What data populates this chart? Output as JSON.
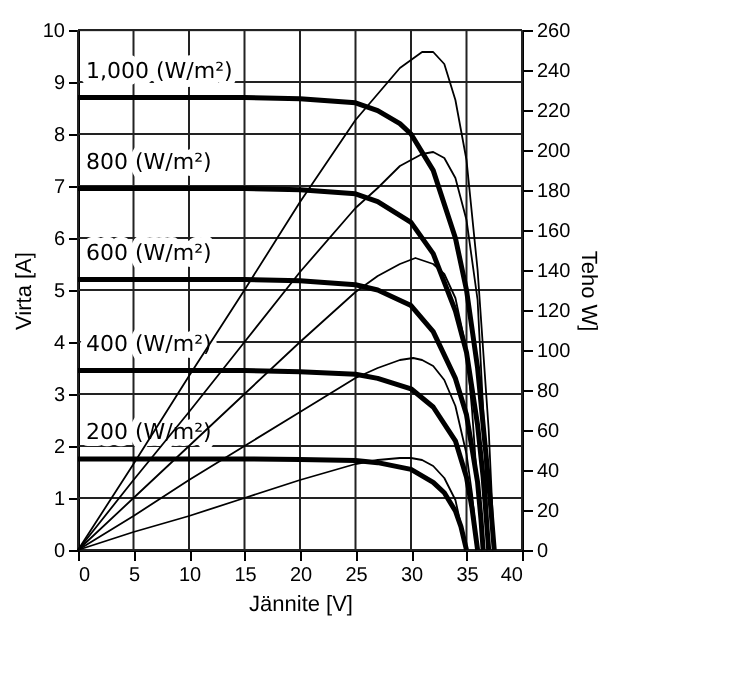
{
  "chart_data": {
    "type": "line",
    "xlabel": "Jännite [V]",
    "ylabel": "Virta [A]",
    "y2label": "Teho W]",
    "xlim": [
      0,
      40
    ],
    "xticks": [
      0,
      5,
      10,
      15,
      20,
      25,
      30,
      35,
      40
    ],
    "ylim": [
      0,
      10
    ],
    "yticks": [
      0,
      1,
      2,
      3,
      4,
      5,
      6,
      7,
      8,
      9,
      10
    ],
    "y2lim": [
      0,
      260
    ],
    "y2ticks": [
      0,
      20,
      40,
      60,
      80,
      100,
      120,
      140,
      160,
      180,
      200,
      220,
      240,
      260
    ],
    "grid": true,
    "line_style": "solid",
    "marker": "none",
    "series": [
      {
        "name": "1,000 (W/m²)",
        "color": "#000000",
        "x": [
          0,
          5,
          10,
          15,
          20,
          25,
          27,
          29,
          30,
          32,
          34,
          35,
          36,
          37,
          37.5
        ],
        "values": [
          8.7,
          8.7,
          8.7,
          8.7,
          8.68,
          8.6,
          8.45,
          8.2,
          8.0,
          7.3,
          6.0,
          5.0,
          3.5,
          1.3,
          0
        ]
      },
      {
        "name": "800 (W/m²)",
        "color": "#000000",
        "x": [
          0,
          5,
          10,
          15,
          20,
          25,
          27,
          30,
          32,
          34,
          35,
          36,
          36.5,
          37
        ],
        "values": [
          6.95,
          6.95,
          6.95,
          6.95,
          6.93,
          6.85,
          6.7,
          6.3,
          5.7,
          4.6,
          3.8,
          2.4,
          1.4,
          0
        ]
      },
      {
        "name": "600 (W/m²)",
        "color": "#000000",
        "x": [
          0,
          5,
          10,
          15,
          20,
          25,
          27,
          30,
          32,
          34,
          35,
          36,
          36.3,
          36.5
        ],
        "values": [
          5.2,
          5.2,
          5.2,
          5.2,
          5.18,
          5.1,
          5.0,
          4.7,
          4.2,
          3.3,
          2.6,
          1.3,
          0.6,
          0
        ]
      },
      {
        "name": "400 (W/m²)",
        "color": "#000000",
        "x": [
          0,
          5,
          10,
          15,
          20,
          25,
          27,
          30,
          32,
          34,
          35,
          35.5,
          36
        ],
        "values": [
          3.45,
          3.45,
          3.45,
          3.45,
          3.43,
          3.38,
          3.3,
          3.1,
          2.75,
          2.1,
          1.4,
          0.8,
          0
        ]
      },
      {
        "name": "200 (W/m²)",
        "color": "#000000",
        "x": [
          0,
          5,
          10,
          15,
          20,
          25,
          27,
          30,
          32,
          33,
          34,
          34.5,
          35
        ],
        "values": [
          1.75,
          1.75,
          1.75,
          1.75,
          1.74,
          1.72,
          1.68,
          1.55,
          1.3,
          1.1,
          0.75,
          0.45,
          0
        ]
      },
      {
        "axis": "y2",
        "color": "#000000",
        "x": [
          0,
          5,
          10,
          15,
          20,
          25,
          27,
          29,
          31,
          32,
          33,
          34,
          35,
          36,
          37,
          37.5
        ],
        "values": [
          0,
          43,
          87,
          130,
          174,
          215,
          228,
          241,
          249,
          249,
          243,
          225,
          195,
          140,
          60,
          0
        ]
      },
      {
        "axis": "y2",
        "color": "#000000",
        "x": [
          0,
          5,
          10,
          15,
          20,
          25,
          27,
          29,
          31,
          32,
          33,
          34,
          35,
          36,
          36.5,
          37
        ],
        "values": [
          0,
          35,
          69,
          104,
          139,
          171,
          181,
          192,
          198,
          199,
          196,
          186,
          165,
          125,
          70,
          0
        ]
      },
      {
        "axis": "y2",
        "color": "#000000",
        "x": [
          0,
          5,
          10,
          15,
          20,
          25,
          27,
          29,
          30.4,
          32,
          33,
          34,
          35,
          35.5,
          36,
          36.5
        ],
        "values": [
          0,
          26,
          52,
          78,
          104,
          129,
          137,
          143,
          146,
          143,
          138,
          126,
          100,
          70,
          30,
          0
        ]
      },
      {
        "axis": "y2",
        "color": "#000000",
        "x": [
          0,
          5,
          10,
          15,
          20,
          25,
          27,
          29,
          30.2,
          31,
          32,
          33,
          34,
          35,
          35.5,
          36
        ],
        "values": [
          0,
          17,
          35,
          52,
          69,
          86,
          91,
          95,
          96,
          95,
          92,
          85,
          72,
          48,
          28,
          0
        ]
      },
      {
        "axis": "y2",
        "color": "#000000",
        "x": [
          0,
          5,
          10,
          15,
          20,
          25,
          27,
          29,
          30,
          31,
          32,
          33,
          34,
          35
        ],
        "values": [
          0,
          9,
          17,
          26,
          35,
          43,
          45,
          46,
          46,
          45,
          42,
          36,
          25,
          0
        ]
      }
    ]
  }
}
